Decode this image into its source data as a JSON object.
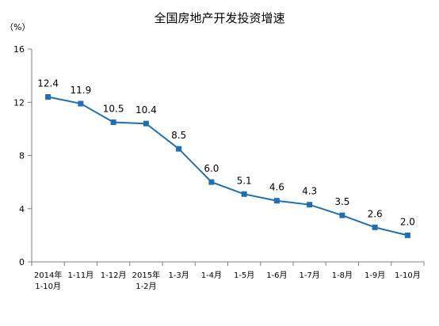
{
  "chart_data": {
    "type": "line",
    "title": "全国房地产开发投资增速",
    "unit_label": "（%）",
    "xlabel": "",
    "ylabel": "",
    "ylim": [
      0,
      16
    ],
    "yticks": [
      "0",
      "4",
      "8",
      "12",
      "16"
    ],
    "yticks_values": [
      0,
      4,
      8,
      12,
      16
    ],
    "grid": false,
    "legend": "none",
    "line_color": "#1f6fb2",
    "categories": [
      [
        "2014年",
        "1-10月"
      ],
      [
        "1-11月"
      ],
      [
        "1-12月"
      ],
      [
        "2015年",
        "1-2月"
      ],
      [
        "1-3月"
      ],
      [
        "1-4月"
      ],
      [
        "1-5月"
      ],
      [
        "1-6月"
      ],
      [
        "1-7月"
      ],
      [
        "1-8月"
      ],
      [
        "1-9月"
      ],
      [
        "1-10月"
      ]
    ],
    "values": [
      12.4,
      11.9,
      10.5,
      10.4,
      8.5,
      6.0,
      5.1,
      4.6,
      4.3,
      3.5,
      2.6,
      2.0
    ],
    "value_labels": [
      "12.4",
      "11.9",
      "10.5",
      "10.4",
      "8.5",
      "6.0",
      "5.1",
      "4.6",
      "4.3",
      "3.5",
      "2.6",
      "2.0"
    ]
  }
}
